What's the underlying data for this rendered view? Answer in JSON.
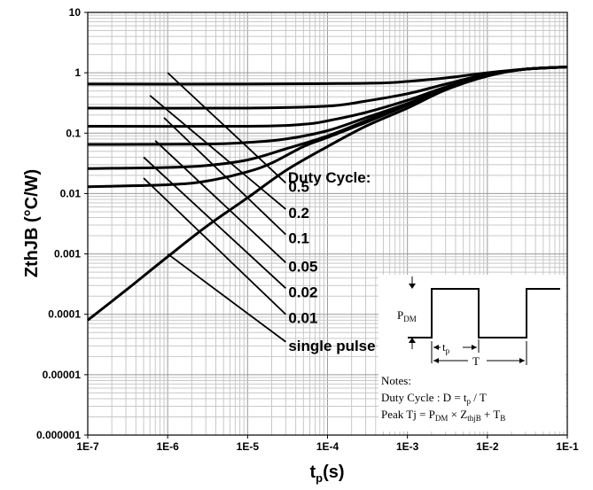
{
  "chart_data": {
    "type": "line",
    "xscale": "log",
    "yscale": "log",
    "xlim": [
      "1E-7",
      "1E-1"
    ],
    "ylim": [
      1e-06,
      10
    ],
    "xlabel": {
      "base": "t",
      "sub": "p",
      "unit": "(s)"
    },
    "ylabel": "ZthJB (°C/W)",
    "x_ticks": [
      "1E-7",
      "1E-6",
      "1E-5",
      "1E-4",
      "1E-3",
      "1E-2",
      "1E-1"
    ],
    "y_ticks": [
      "10",
      "1",
      "0.1",
      "0.01",
      "0.001",
      "0.0001",
      "0.00001",
      "0.000001"
    ],
    "grid": true,
    "legend_title": "Duty Cycle:",
    "series": [
      {
        "name": "0.5",
        "x": [
          1e-07,
          1e-05,
          0.0001,
          0.0005,
          0.001,
          0.003,
          0.01,
          0.03,
          0.1
        ],
        "y": [
          0.65,
          0.65,
          0.66,
          0.68,
          0.72,
          0.82,
          1.0,
          1.15,
          1.25
        ]
      },
      {
        "name": "0.2",
        "x": [
          1e-07,
          1e-05,
          0.0001,
          0.0003,
          0.001,
          0.003,
          0.01,
          0.03,
          0.1
        ],
        "y": [
          0.26,
          0.26,
          0.28,
          0.34,
          0.45,
          0.65,
          0.95,
          1.15,
          1.25
        ]
      },
      {
        "name": "0.1",
        "x": [
          1e-07,
          1e-05,
          5e-05,
          0.0001,
          0.0003,
          0.001,
          0.003,
          0.01,
          0.03,
          0.1
        ],
        "y": [
          0.13,
          0.13,
          0.14,
          0.16,
          0.22,
          0.35,
          0.58,
          0.92,
          1.15,
          1.25
        ]
      },
      {
        "name": "0.05",
        "x": [
          1e-07,
          3e-06,
          1e-05,
          3e-05,
          0.0001,
          0.0003,
          0.001,
          0.003,
          0.01,
          0.03,
          0.1
        ],
        "y": [
          0.065,
          0.066,
          0.07,
          0.08,
          0.11,
          0.18,
          0.31,
          0.55,
          0.9,
          1.15,
          1.25
        ]
      },
      {
        "name": "0.02",
        "x": [
          1e-07,
          1e-06,
          3e-06,
          1e-05,
          3e-05,
          0.0001,
          0.0003,
          0.001,
          0.003,
          0.01,
          0.03,
          0.1
        ],
        "y": [
          0.026,
          0.027,
          0.029,
          0.036,
          0.055,
          0.09,
          0.16,
          0.3,
          0.55,
          0.9,
          1.15,
          1.25
        ]
      },
      {
        "name": "0.01",
        "x": [
          1e-07,
          1e-06,
          3e-06,
          1e-05,
          2e-05,
          5e-05,
          0.0001,
          0.0003,
          0.001,
          0.003,
          0.01,
          0.03,
          0.1
        ],
        "y": [
          0.013,
          0.014,
          0.016,
          0.023,
          0.032,
          0.06,
          0.085,
          0.15,
          0.29,
          0.54,
          0.9,
          1.15,
          1.25
        ]
      },
      {
        "name": "single pulse",
        "x": [
          1e-07,
          3e-07,
          1e-06,
          3e-06,
          1e-05,
          3e-05,
          0.0001,
          0.0003,
          0.001,
          0.003,
          0.01,
          0.03,
          0.1
        ],
        "y": [
          8e-05,
          0.00025,
          0.0009,
          0.0028,
          0.0085,
          0.024,
          0.06,
          0.13,
          0.26,
          0.52,
          0.88,
          1.15,
          1.25
        ]
      }
    ],
    "pointer_lines": [
      {
        "label": "0.5",
        "from": [
          1e-06,
          1.0
        ],
        "to": [
          3e-05,
          0.015
        ]
      },
      {
        "label": "0.2",
        "from": [
          6e-07,
          0.42
        ],
        "to": [
          3e-05,
          0.0055
        ]
      },
      {
        "label": "0.1",
        "from": [
          9e-07,
          0.18
        ],
        "to": [
          3e-05,
          0.0021
        ]
      },
      {
        "label": "0.05",
        "from": [
          7e-07,
          0.075
        ],
        "to": [
          3e-05,
          0.00072
        ]
      },
      {
        "label": "0.02",
        "from": [
          5e-07,
          0.04
        ],
        "to": [
          3e-05,
          0.00027
        ]
      },
      {
        "label": "0.01",
        "from": [
          5e-07,
          0.018
        ],
        "to": [
          3e-05,
          0.0001
        ]
      },
      {
        "label": "single pulse",
        "from": [
          1e-06,
          0.001
        ],
        "to": [
          3e-05,
          3.5e-05
        ]
      }
    ],
    "notes_box": {
      "pdm": {
        "base": "P",
        "sub": "DM"
      },
      "tp": {
        "base": "t",
        "sub": "p"
      },
      "period": "T",
      "notes_title": "Notes:",
      "duty_line": {
        "lead": "Duty Cycle : D = t",
        "sub": "p",
        "tail": " / T"
      },
      "peak_line": {
        "lead": "Peak Tj = P",
        "sub1": "DM",
        "mid": " × Z",
        "sub2": "thjB",
        "mid2": " + T",
        "sub3": "B"
      }
    }
  }
}
